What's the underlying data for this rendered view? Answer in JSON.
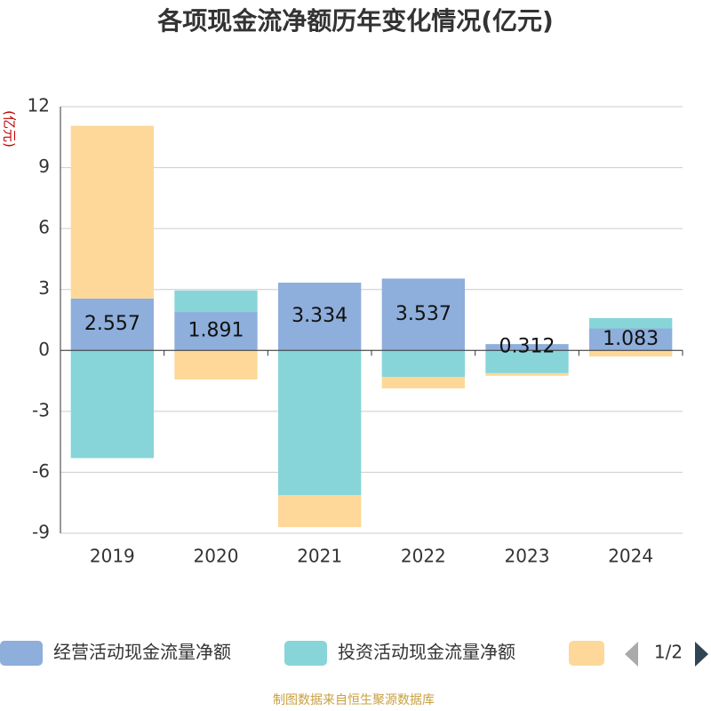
{
  "chart_data": {
    "type": "stacked_bar",
    "title": "各项现金流净额历年变化情况(亿元)",
    "y_label": "(亿元)",
    "categories": [
      "2019",
      "2020",
      "2021",
      "2022",
      "2023",
      "2024"
    ],
    "series": [
      {
        "name": "经营活动现金流量净额",
        "color": "#8eaedb",
        "values": [
          2.557,
          1.891,
          3.334,
          3.537,
          0.312,
          1.083
        ]
      },
      {
        "name": "投资活动现金流量净额",
        "color": "#87d5d8",
        "values": [
          -5.3,
          1.06,
          -7.13,
          -1.3,
          -1.12,
          0.51
        ]
      },
      {
        "color": "#fdd898",
        "values": [
          8.5,
          -1.43,
          -1.57,
          -0.57,
          -0.13,
          -0.3
        ]
      }
    ],
    "ylim": [
      -9,
      12
    ],
    "yticks": [
      -9,
      -6,
      -3,
      0,
      3,
      6,
      9,
      12
    ],
    "grid": true,
    "legend_page": "1/2",
    "source": "制图数据来自恒生聚源数据库"
  }
}
